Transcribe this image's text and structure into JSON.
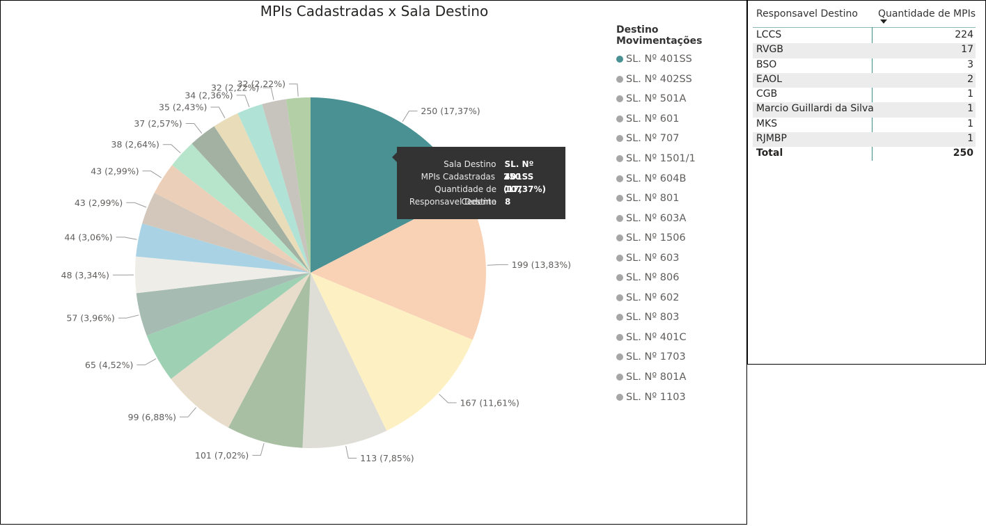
{
  "chart_data": {
    "type": "pie",
    "title": "MPIs Cadastradas x Sala Destino",
    "legend_title": "Destino Movimentações",
    "legend_position": "right",
    "slices": [
      {
        "label": "SL. Nº 401SS",
        "value": 250,
        "pct": "17,37%",
        "color": "#4a9194",
        "legend_color": "#4a9194"
      },
      {
        "label": "SL. Nº 402SS",
        "value": 199,
        "pct": "13,83%",
        "color": "#f9d2b6",
        "legend_color": "#a6a6a6"
      },
      {
        "label": "SL. Nº 501A",
        "value": 167,
        "pct": "11,61%",
        "color": "#fdf1c4",
        "legend_color": "#a6a6a6"
      },
      {
        "label": "SL. Nº 601",
        "value": 113,
        "pct": "7,85%",
        "color": "#deddd6",
        "legend_color": "#a6a6a6"
      },
      {
        "label": "SL. Nº 707",
        "value": 101,
        "pct": "7,02%",
        "color": "#a9bfa3",
        "legend_color": "#a6a6a6"
      },
      {
        "label": "SL. Nº 1501/1",
        "value": 99,
        "pct": "6,88%",
        "color": "#e7ddca",
        "legend_color": "#a6a6a6"
      },
      {
        "label": "SL. Nº 604B",
        "value": 65,
        "pct": "4,52%",
        "color": "#9ed0b3",
        "legend_color": "#a6a6a6"
      },
      {
        "label": "SL. Nº 801",
        "value": 57,
        "pct": "3,96%",
        "color": "#a6bbb1",
        "legend_color": "#a6a6a6"
      },
      {
        "label": "SL. Nº 603A",
        "value": 48,
        "pct": "3,34%",
        "color": "#efede7",
        "legend_color": "#a6a6a6"
      },
      {
        "label": "SL. Nº 1506",
        "value": 44,
        "pct": "3,06%",
        "color": "#a9d3e4",
        "legend_color": "#a6a6a6"
      },
      {
        "label": "SL. Nº 603",
        "value": 43,
        "pct": "2,99%",
        "color": "#d2c7ba",
        "legend_color": "#a6a6a6"
      },
      {
        "label": "SL. Nº 806",
        "value": 43,
        "pct": "2,99%",
        "color": "#eccfb8",
        "legend_color": "#a6a6a6"
      },
      {
        "label": "SL. Nº 602",
        "value": 38,
        "pct": "2,64%",
        "color": "#b7e5cb",
        "legend_color": "#a6a6a6"
      },
      {
        "label": "SL. Nº 803",
        "value": 37,
        "pct": "2,57%",
        "color": "#a3b1a3",
        "legend_color": "#a6a6a6"
      },
      {
        "label": "SL. Nº 401C",
        "value": 35,
        "pct": "2,43%",
        "color": "#e8dcb9",
        "legend_color": "#a6a6a6"
      },
      {
        "label": "SL. Nº 1703",
        "value": 34,
        "pct": "2,36%",
        "color": "#b0e2d6",
        "legend_color": "#a6a6a6"
      },
      {
        "label": "SL. Nº 801A",
        "value": 32,
        "pct": "2,22%",
        "color": "#c7c3bd",
        "legend_color": "#a6a6a6"
      },
      {
        "label": "SL. Nº 1103",
        "value": 32,
        "pct": "2,22%",
        "color": "#b3cfa6",
        "legend_color": "#a6a6a6"
      }
    ]
  },
  "tooltip": {
    "rows": [
      {
        "label": "Sala Destino",
        "value": "SL. Nº 401SS"
      },
      {
        "label": "MPIs Cadastradas",
        "value": "250 (17,37%)"
      },
      {
        "label": "Quantidade de Cedente",
        "value": "107"
      },
      {
        "label": "Responsavel Destino",
        "value": "8"
      }
    ]
  },
  "table": {
    "col1": "Responsavel Destino",
    "col2": "Quantidade de MPIs",
    "rows": [
      {
        "name": "LCCS",
        "value": "224"
      },
      {
        "name": "RVGB",
        "value": "17"
      },
      {
        "name": "BSO",
        "value": "3"
      },
      {
        "name": "EAOL",
        "value": "2"
      },
      {
        "name": "CGB",
        "value": "1"
      },
      {
        "name": "Marcio Guillardi da Silva",
        "value": "1"
      },
      {
        "name": "MKS",
        "value": "1"
      },
      {
        "name": "RJMBP",
        "value": "1"
      }
    ],
    "total_label": "Total",
    "total_value": "250"
  }
}
